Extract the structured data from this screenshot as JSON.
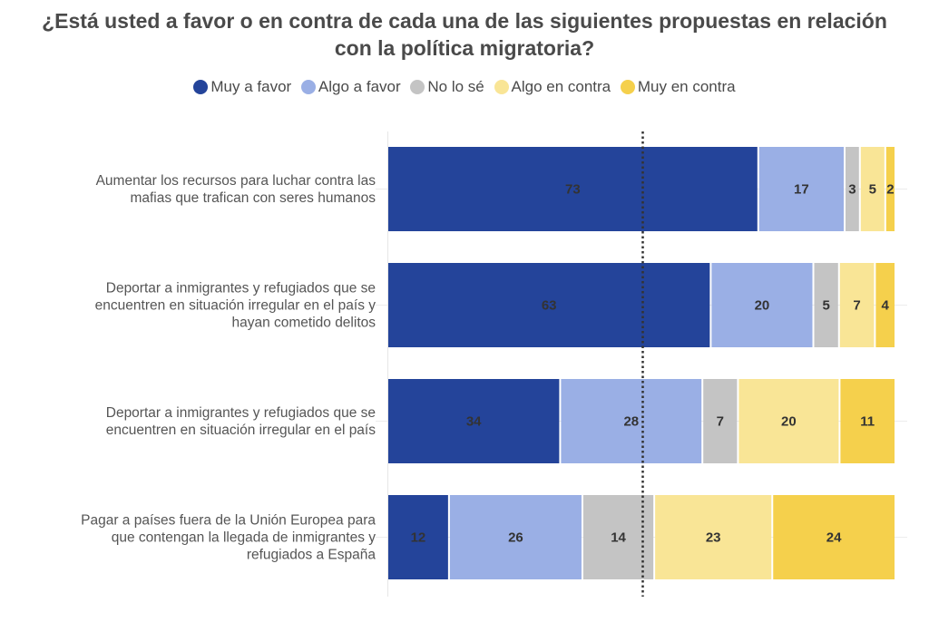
{
  "chart_data": {
    "type": "bar",
    "orientation": "horizontal",
    "stacked": true,
    "normalized": true,
    "title": "¿Está usted a favor o en contra de cada una de las siguientes propuestas en relación con la política migratoria?",
    "title_lines": [
      "¿Está usted a favor o en contra de cada una de las siguientes propuestas en relación",
      "con la política migratoria?"
    ],
    "xlabel": "",
    "ylabel": "",
    "legend_position": "top-center",
    "reference_line": {
      "style": "dotted",
      "value_percent": 50
    },
    "categories": [
      [
        "Aumentar los recursos para luchar contra las",
        "mafias que trafican con seres humanos"
      ],
      [
        "Deportar a inmigrantes y refugiados que se",
        "encuentren en situación irregular en el país y",
        "hayan cometido delitos"
      ],
      [
        "Deportar a inmigrantes y refugiados que se",
        "encuentren en situación irregular en el país"
      ],
      [
        "Pagar a países fuera de la Unión Europea para",
        "que contengan la llegada de inmigrantes y",
        "refugiados a España"
      ]
    ],
    "series": [
      {
        "name": "Muy a favor",
        "color": "#24449A",
        "values": [
          73,
          63,
          34,
          12
        ]
      },
      {
        "name": "Algo a favor",
        "color": "#9AAFE5",
        "values": [
          17,
          20,
          28,
          26
        ]
      },
      {
        "name": "No lo sé",
        "color": "#C4C4C4",
        "values": [
          3,
          5,
          7,
          14
        ]
      },
      {
        "name": "Algo en contra",
        "color": "#F9E596",
        "values": [
          5,
          7,
          20,
          23
        ]
      },
      {
        "name": "Muy en contra",
        "color": "#F5D04C",
        "values": [
          2,
          4,
          11,
          24
        ]
      }
    ]
  }
}
